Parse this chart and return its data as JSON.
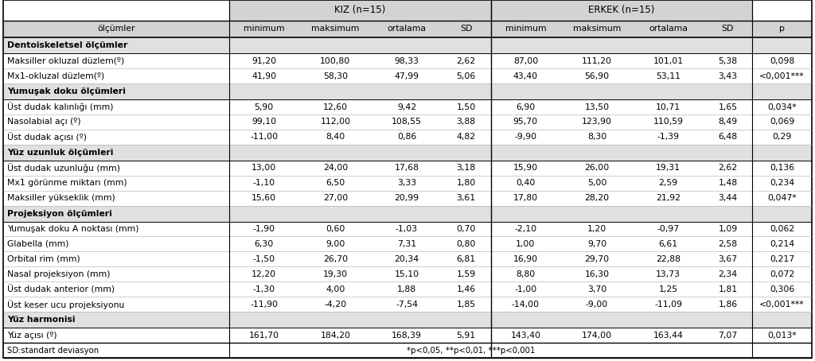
{
  "title_kiz": "KIZ (n=15)",
  "title_erkek": "ERKEK (n=15)",
  "col_header": [
    "ölçümler",
    "minimum",
    "maksimum",
    "ortalama",
    "SD",
    "minimum",
    "maksimum",
    "ortalama",
    "SD",
    "p"
  ],
  "rows": [
    {
      "type": "section",
      "label": "Dentoiskeletsel ölçümler"
    },
    {
      "type": "data",
      "values": [
        "Maksiller okluzal düzlem(º)",
        "91,20",
        "100,80",
        "98,33",
        "2,62",
        "87,00",
        "111,20",
        "101,01",
        "5,38",
        "0,098"
      ]
    },
    {
      "type": "data",
      "values": [
        "Mx1-okluzal düzlem(º)",
        "41,90",
        "58,30",
        "47,99",
        "5,06",
        "43,40",
        "56,90",
        "53,11",
        "3,43",
        "<0,001***"
      ]
    },
    {
      "type": "section",
      "label": "Yumuşak doku ölçümleri"
    },
    {
      "type": "data",
      "values": [
        "Üst dudak kalınlığı (mm)",
        "5,90",
        "12,60",
        "9,42",
        "1,50",
        "6,90",
        "13,50",
        "10,71",
        "1,65",
        "0,034*"
      ]
    },
    {
      "type": "data",
      "values": [
        "Nasolabial açı (º)",
        "99,10",
        "112,00",
        "108,55",
        "3,88",
        "95,70",
        "123,90",
        "110,59",
        "8,49",
        "0,069"
      ]
    },
    {
      "type": "data",
      "values": [
        "Üst dudak açısı (º)",
        "-11,00",
        "8,40",
        "0,86",
        "4,82",
        "-9,90",
        "8,30",
        "-1,39",
        "6,48",
        "0,29"
      ]
    },
    {
      "type": "section",
      "label": "Yüz uzunluk ölçümleri"
    },
    {
      "type": "data",
      "values": [
        "Üst dudak uzunluğu (mm)",
        "13,00",
        "24,00",
        "17,68",
        "3,18",
        "15,90",
        "26,00",
        "19,31",
        "2,62",
        "0,136"
      ]
    },
    {
      "type": "data",
      "values": [
        "Mx1 görünme miktarı (mm)",
        "-1,10",
        "6,50",
        "3,33",
        "1,80",
        "0,40",
        "5,00",
        "2,59",
        "1,48",
        "0,234"
      ]
    },
    {
      "type": "data",
      "values": [
        "Maksiller yükseklik (mm)",
        "15,60",
        "27,00",
        "20,99",
        "3,61",
        "17,80",
        "28,20",
        "21,92",
        "3,44",
        "0,047*"
      ]
    },
    {
      "type": "section",
      "label": "Projeksiyon ölçümleri"
    },
    {
      "type": "data",
      "values": [
        "Yumuşak doku A noktası (mm)",
        "-1,90",
        "0,60",
        "-1,03",
        "0,70",
        "-2,10",
        "1,20",
        "-0,97",
        "1,09",
        "0,062"
      ]
    },
    {
      "type": "data",
      "values": [
        "Glabella (mm)",
        "6,30",
        "9,00",
        "7,31",
        "0,80",
        "1,00",
        "9,70",
        "6,61",
        "2,58",
        "0,214"
      ]
    },
    {
      "type": "data",
      "values": [
        "Orbital rim (mm)",
        "-1,50",
        "26,70",
        "20,34",
        "6,81",
        "16,90",
        "29,70",
        "22,88",
        "3,67",
        "0,217"
      ]
    },
    {
      "type": "data",
      "values": [
        "Nasal projeksiyon (mm)",
        "12,20",
        "19,30",
        "15,10",
        "1,59",
        "8,80",
        "16,30",
        "13,73",
        "2,34",
        "0,072"
      ]
    },
    {
      "type": "data",
      "values": [
        "Üst dudak anterior (mm)",
        "-1,30",
        "4,00",
        "1,88",
        "1,46",
        "-1,00",
        "3,70",
        "1,25",
        "1,81",
        "0,306"
      ]
    },
    {
      "type": "data",
      "values": [
        "Üst keser ucu projeksiyonu",
        "-11,90",
        "-4,20",
        "-7,54",
        "1,85",
        "-14,00",
        "-9,00",
        "-11,09",
        "1,86",
        "<0,001***"
      ]
    },
    {
      "type": "section",
      "label": "Yüz harmonisi"
    },
    {
      "type": "data",
      "values": [
        "Yüz açısı (º)",
        "161,70",
        "184,20",
        "168,39",
        "5,91",
        "143,40",
        "174,00",
        "163,44",
        "7,07",
        "0,013*"
      ]
    }
  ],
  "footer_left": "SD:standart deviasyon",
  "footer_right": "*p<0,05, **p<0,01, ***p<0,001",
  "bg_color": "#ffffff",
  "header_bg": "#d3d3d3",
  "section_bg": "#e0e0e0",
  "data_row_bg": "#ffffff",
  "border_color": "#000000",
  "font_size": 7.8,
  "header_font_size": 8.5,
  "col_widths_rel": [
    2.85,
    0.88,
    0.92,
    0.88,
    0.62,
    0.88,
    0.92,
    0.88,
    0.62,
    0.75
  ]
}
